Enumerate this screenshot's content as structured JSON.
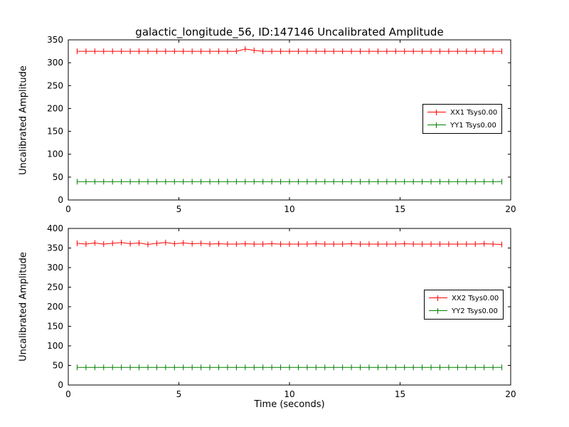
{
  "title": "galactic_longitude_56, ID:147146 Uncalibrated Amplitude",
  "chart_data": [
    {
      "type": "line",
      "title": "",
      "xlabel": "",
      "ylabel": "Uncalibrated Amplitude",
      "xlim": [
        0,
        20
      ],
      "ylim": [
        0,
        350
      ],
      "xticks": [
        0,
        5,
        10,
        15,
        20
      ],
      "yticks": [
        0,
        50,
        100,
        150,
        200,
        250,
        300,
        350
      ],
      "grid": false,
      "legend_position": "center right",
      "x": [
        0.4,
        0.8,
        1.2,
        1.6,
        2,
        2.4,
        2.8,
        3.2,
        3.6,
        4,
        4.4,
        4.8,
        5.2,
        5.6,
        6,
        6.4,
        6.8,
        7.2,
        7.6,
        8,
        8.4,
        8.8,
        9.2,
        9.6,
        10,
        10.4,
        10.8,
        11.2,
        11.6,
        12,
        12.4,
        12.8,
        13.2,
        13.6,
        14,
        14.4,
        14.8,
        15.2,
        15.6,
        16,
        16.4,
        16.8,
        17.2,
        17.6,
        18,
        18.4,
        18.8,
        19.2,
        19.6
      ],
      "series": [
        {
          "name": "XX1 Tsys0.00",
          "color": "#ff0000",
          "values": [
            325,
            325,
            325,
            325,
            325,
            325,
            325,
            325,
            325,
            325,
            325,
            325,
            325,
            325,
            325,
            325,
            325,
            325,
            325,
            330,
            327,
            325,
            325,
            325,
            325,
            325,
            325,
            325,
            325,
            325,
            325,
            325,
            325,
            325,
            325,
            325,
            325,
            325,
            325,
            325,
            325,
            325,
            325,
            325,
            325,
            325,
            325,
            325,
            325
          ]
        },
        {
          "name": "YY1 Tsys0.00",
          "color": "#008000",
          "values": [
            40,
            40,
            40,
            40,
            40,
            40,
            40,
            40,
            40,
            40,
            40,
            40,
            40,
            40,
            40,
            40,
            40,
            40,
            40,
            40,
            40,
            40,
            40,
            40,
            40,
            40,
            40,
            40,
            40,
            40,
            40,
            40,
            40,
            40,
            40,
            40,
            40,
            40,
            40,
            40,
            40,
            40,
            40,
            40,
            40,
            40,
            40,
            40,
            40
          ]
        }
      ]
    },
    {
      "type": "line",
      "title": "",
      "xlabel": "Time (seconds)",
      "ylabel": "Uncalibrated Amplitude",
      "xlim": [
        0,
        20
      ],
      "ylim": [
        0,
        400
      ],
      "xticks": [
        0,
        5,
        10,
        15,
        20
      ],
      "yticks": [
        0,
        50,
        100,
        150,
        200,
        250,
        300,
        350,
        400
      ],
      "grid": false,
      "legend_position": "center right",
      "x": [
        0.4,
        0.8,
        1.2,
        1.6,
        2,
        2.4,
        2.8,
        3.2,
        3.6,
        4,
        4.4,
        4.8,
        5.2,
        5.6,
        6,
        6.4,
        6.8,
        7.2,
        7.6,
        8,
        8.4,
        8.8,
        9.2,
        9.6,
        10,
        10.4,
        10.8,
        11.2,
        11.6,
        12,
        12.4,
        12.8,
        13.2,
        13.6,
        14,
        14.4,
        14.8,
        15.2,
        15.6,
        16,
        16.4,
        16.8,
        17.2,
        17.6,
        18,
        18.4,
        18.8,
        19.2,
        19.6
      ],
      "series": [
        {
          "name": "XX2 Tsys0.00",
          "color": "#ff0000",
          "values": [
            362,
            360,
            363,
            360,
            362,
            364,
            361,
            363,
            359,
            362,
            364,
            361,
            363,
            361,
            362,
            360,
            361,
            360,
            360,
            361,
            360,
            360,
            361,
            360,
            360,
            360,
            360,
            361,
            360,
            360,
            360,
            361,
            360,
            360,
            360,
            360,
            360,
            361,
            360,
            360,
            360,
            360,
            360,
            360,
            360,
            360,
            361,
            360,
            359
          ]
        },
        {
          "name": "YY2 Tsys0.00",
          "color": "#008000",
          "values": [
            45,
            45,
            45,
            45,
            45,
            45,
            45,
            45,
            45,
            45,
            45,
            45,
            45,
            45,
            45,
            45,
            45,
            45,
            45,
            45,
            45,
            45,
            45,
            45,
            45,
            45,
            45,
            45,
            45,
            45,
            45,
            45,
            45,
            45,
            45,
            45,
            45,
            45,
            45,
            45,
            45,
            45,
            45,
            45,
            45,
            45,
            45,
            45,
            45
          ]
        }
      ]
    }
  ]
}
